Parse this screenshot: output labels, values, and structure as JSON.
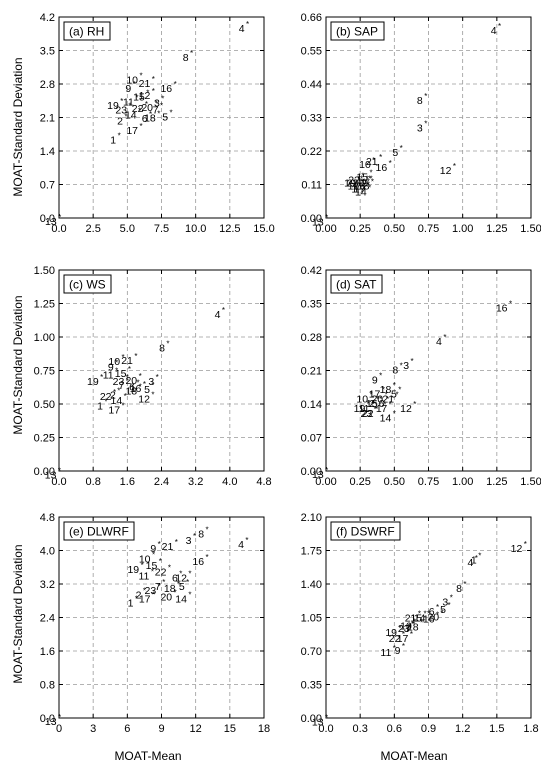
{
  "figure": {
    "xlabel": "MOAT-Mean",
    "ylabel": "MOAT-Standard Deviation"
  },
  "chart_data": [
    {
      "type": "scatter",
      "title": "(a) RH",
      "xlabel": "",
      "ylabel": "MOAT-Standard Deviation",
      "xlim": [
        0,
        15
      ],
      "ylim": [
        0,
        4.2
      ],
      "xticks": [
        "0.0",
        "2.5",
        "5.0",
        "7.5",
        "10.0",
        "12.5",
        "15.0"
      ],
      "yticks": [
        "0.0",
        "0.7",
        "1.4",
        "2.1",
        "2.8",
        "3.5",
        "4.2"
      ],
      "grid": true,
      "points": [
        {
          "label": "1",
          "x": 4.4,
          "y": 1.72
        },
        {
          "label": "2",
          "x": 4.9,
          "y": 2.12
        },
        {
          "label": "3",
          "x": 7.6,
          "y": 2.5
        },
        {
          "label": "4",
          "x": 13.8,
          "y": 4.05
        },
        {
          "label": "5",
          "x": 8.2,
          "y": 2.2
        },
        {
          "label": "6",
          "x": 6.7,
          "y": 2.17
        },
        {
          "label": "7",
          "x": 7.5,
          "y": 2.35
        },
        {
          "label": "8",
          "x": 9.7,
          "y": 3.45
        },
        {
          "label": "9",
          "x": 5.5,
          "y": 2.8
        },
        {
          "label": "10",
          "x": 6.0,
          "y": 2.98
        },
        {
          "label": "11",
          "x": 5.7,
          "y": 2.52
        },
        {
          "label": "12",
          "x": 6.9,
          "y": 2.65
        },
        {
          "label": "13",
          "x": 0.05,
          "y": 0.02
        },
        {
          "label": "14",
          "x": 5.9,
          "y": 2.25
        },
        {
          "label": "15",
          "x": 6.5,
          "y": 2.62
        },
        {
          "label": "16",
          "x": 8.5,
          "y": 2.8
        },
        {
          "label": "17",
          "x": 6.0,
          "y": 1.92
        },
        {
          "label": "18",
          "x": 7.3,
          "y": 2.18
        },
        {
          "label": "19",
          "x": 4.6,
          "y": 2.45
        },
        {
          "label": "20",
          "x": 7.1,
          "y": 2.4
        },
        {
          "label": "21",
          "x": 6.9,
          "y": 2.9
        },
        {
          "label": "22",
          "x": 6.4,
          "y": 2.38
        },
        {
          "label": "23",
          "x": 5.2,
          "y": 2.35
        }
      ]
    },
    {
      "type": "scatter",
      "title": "(b) SAP",
      "xlabel": "",
      "ylabel": "",
      "xlim": [
        0,
        1.5
      ],
      "ylim": [
        0,
        0.66
      ],
      "xticks": [
        "0.00",
        "0.25",
        "0.50",
        "0.75",
        "1.00",
        "1.25",
        "1.50"
      ],
      "yticks": [
        "0.00",
        "0.11",
        "0.22",
        "0.33",
        "0.44",
        "0.55",
        "0.66"
      ],
      "grid": true,
      "points": [
        {
          "label": "1",
          "x": 0.25,
          "y": 0.11
        },
        {
          "label": "2",
          "x": 0.32,
          "y": 0.13
        },
        {
          "label": "3",
          "x": 0.73,
          "y": 0.31
        },
        {
          "label": "4",
          "x": 1.27,
          "y": 0.63
        },
        {
          "label": "5",
          "x": 0.55,
          "y": 0.23
        },
        {
          "label": "6",
          "x": 0.31,
          "y": 0.12
        },
        {
          "label": "7",
          "x": 0.28,
          "y": 0.12
        },
        {
          "label": "8",
          "x": 0.73,
          "y": 0.4
        },
        {
          "label": "9",
          "x": 0.33,
          "y": 0.13
        },
        {
          "label": "10",
          "x": 0.35,
          "y": 0.19
        },
        {
          "label": "11",
          "x": 0.26,
          "y": 0.12
        },
        {
          "label": "12",
          "x": 0.94,
          "y": 0.17
        },
        {
          "label": "13",
          "x": 0.005,
          "y": 0.002
        },
        {
          "label": "14",
          "x": 0.32,
          "y": 0.1
        },
        {
          "label": "15",
          "x": 0.33,
          "y": 0.15
        },
        {
          "label": "16",
          "x": 0.47,
          "y": 0.18
        },
        {
          "label": "17",
          "x": 0.31,
          "y": 0.11
        },
        {
          "label": "18",
          "x": 0.34,
          "y": 0.12
        },
        {
          "label": "19",
          "x": 0.24,
          "y": 0.13
        },
        {
          "label": "20",
          "x": 0.3,
          "y": 0.13
        },
        {
          "label": "21",
          "x": 0.4,
          "y": 0.2
        },
        {
          "label": "22",
          "x": 0.27,
          "y": 0.14
        },
        {
          "label": "23",
          "x": 0.26,
          "y": 0.13
        }
      ]
    },
    {
      "type": "scatter",
      "title": "(c) WS",
      "xlabel": "",
      "ylabel": "MOAT-Standard Deviation",
      "xlim": [
        0,
        4.8
      ],
      "ylim": [
        0,
        1.5
      ],
      "xticks": [
        "0.0",
        "0.8",
        "1.6",
        "2.4",
        "3.2",
        "4.0",
        "4.8"
      ],
      "yticks": [
        "0.00",
        "0.25",
        "0.50",
        "0.75",
        "1.00",
        "1.25",
        "1.50"
      ],
      "grid": true,
      "points": [
        {
          "label": "1",
          "x": 1.1,
          "y": 0.52
        },
        {
          "label": "2",
          "x": 1.4,
          "y": 0.6
        },
        {
          "label": "3",
          "x": 2.3,
          "y": 0.7
        },
        {
          "label": "4",
          "x": 3.85,
          "y": 1.2
        },
        {
          "label": "5",
          "x": 2.2,
          "y": 0.64
        },
        {
          "label": "6",
          "x": 1.85,
          "y": 0.66
        },
        {
          "label": "7",
          "x": 1.6,
          "y": 0.67
        },
        {
          "label": "8",
          "x": 2.55,
          "y": 0.95
        },
        {
          "label": "9",
          "x": 1.35,
          "y": 0.81
        },
        {
          "label": "10",
          "x": 1.5,
          "y": 0.85
        },
        {
          "label": "11",
          "x": 1.35,
          "y": 0.75
        },
        {
          "label": "12",
          "x": 2.2,
          "y": 0.57
        },
        {
          "label": "13",
          "x": 0.01,
          "y": 0.005
        },
        {
          "label": "14",
          "x": 1.55,
          "y": 0.56
        },
        {
          "label": "15",
          "x": 1.65,
          "y": 0.76
        },
        {
          "label": "16",
          "x": 2.0,
          "y": 0.65
        },
        {
          "label": "17",
          "x": 1.5,
          "y": 0.49
        },
        {
          "label": "18",
          "x": 1.9,
          "y": 0.63
        },
        {
          "label": "19",
          "x": 1.0,
          "y": 0.7
        },
        {
          "label": "20",
          "x": 1.9,
          "y": 0.71
        },
        {
          "label": "21",
          "x": 1.8,
          "y": 0.86
        },
        {
          "label": "22",
          "x": 1.3,
          "y": 0.59
        },
        {
          "label": "23",
          "x": 1.6,
          "y": 0.7
        }
      ]
    },
    {
      "type": "scatter",
      "title": "(d) SAT",
      "xlabel": "",
      "ylabel": "",
      "xlim": [
        0,
        1.5
      ],
      "ylim": [
        0,
        0.42
      ],
      "xticks": [
        "0.00",
        "0.25",
        "0.50",
        "0.75",
        "1.00",
        "1.25",
        "1.50"
      ],
      "yticks": [
        "0.00",
        "0.07",
        "0.14",
        "0.21",
        "0.28",
        "0.35",
        "0.42"
      ],
      "grid": true,
      "points": [
        {
          "label": "1",
          "x": 0.43,
          "y": 0.14
        },
        {
          "label": "2",
          "x": 0.38,
          "y": 0.15
        },
        {
          "label": "3",
          "x": 0.63,
          "y": 0.23
        },
        {
          "label": "4",
          "x": 0.87,
          "y": 0.28
        },
        {
          "label": "5",
          "x": 0.54,
          "y": 0.17
        },
        {
          "label": "6",
          "x": 0.45,
          "y": 0.15
        },
        {
          "label": "7",
          "x": 0.47,
          "y": 0.14
        },
        {
          "label": "8",
          "x": 0.55,
          "y": 0.22
        },
        {
          "label": "9",
          "x": 0.4,
          "y": 0.2
        },
        {
          "label": "10",
          "x": 0.33,
          "y": 0.16
        },
        {
          "label": "11",
          "x": 0.34,
          "y": 0.14
        },
        {
          "label": "12",
          "x": 0.65,
          "y": 0.14
        },
        {
          "label": "13",
          "x": 0.005,
          "y": 0.002
        },
        {
          "label": "14",
          "x": 0.5,
          "y": 0.12
        },
        {
          "label": "15",
          "x": 0.4,
          "y": 0.15
        },
        {
          "label": "16",
          "x": 1.35,
          "y": 0.35
        },
        {
          "label": "17",
          "x": 0.42,
          "y": 0.17
        },
        {
          "label": "18",
          "x": 0.5,
          "y": 0.18
        },
        {
          "label": "19",
          "x": 0.31,
          "y": 0.14
        },
        {
          "label": "20",
          "x": 0.44,
          "y": 0.16
        },
        {
          "label": "21",
          "x": 0.52,
          "y": 0.16
        },
        {
          "label": "22",
          "x": 0.37,
          "y": 0.13
        },
        {
          "label": "23",
          "x": 0.36,
          "y": 0.13
        }
      ]
    },
    {
      "type": "scatter",
      "title": "(e) DLWRF",
      "xlabel": "MOAT-Mean",
      "ylabel": "MOAT-Standard Deviation",
      "xlim": [
        0,
        18
      ],
      "ylim": [
        0,
        4.8
      ],
      "xticks": [
        "0",
        "3",
        "6",
        "9",
        "12",
        "15",
        "18"
      ],
      "yticks": [
        "0.0",
        "0.8",
        "1.6",
        "2.4",
        "3.2",
        "4.0",
        "4.8"
      ],
      "grid": true,
      "points": [
        {
          "label": "1",
          "x": 6.8,
          "y": 2.85
        },
        {
          "label": "2",
          "x": 7.5,
          "y": 3.05
        },
        {
          "label": "3",
          "x": 11.9,
          "y": 4.35
        },
        {
          "label": "4",
          "x": 16.5,
          "y": 4.25
        },
        {
          "label": "5",
          "x": 11.3,
          "y": 3.25
        },
        {
          "label": "6",
          "x": 10.7,
          "y": 3.45
        },
        {
          "label": "7",
          "x": 9.2,
          "y": 3.25
        },
        {
          "label": "8",
          "x": 13.0,
          "y": 4.5
        },
        {
          "label": "9",
          "x": 8.8,
          "y": 4.15
        },
        {
          "label": "10",
          "x": 8.3,
          "y": 3.9
        },
        {
          "label": "11",
          "x": 8.2,
          "y": 3.5
        },
        {
          "label": "12",
          "x": 11.5,
          "y": 3.45
        },
        {
          "label": "13",
          "x": 0.05,
          "y": 0.02
        },
        {
          "label": "14",
          "x": 11.5,
          "y": 2.95
        },
        {
          "label": "15",
          "x": 8.9,
          "y": 3.75
        },
        {
          "label": "16",
          "x": 13.0,
          "y": 3.85
        },
        {
          "label": "17",
          "x": 8.3,
          "y": 2.95
        },
        {
          "label": "18",
          "x": 10.5,
          "y": 3.2
        },
        {
          "label": "19",
          "x": 7.3,
          "y": 3.65
        },
        {
          "label": "20",
          "x": 10.2,
          "y": 3.0
        },
        {
          "label": "21",
          "x": 10.3,
          "y": 4.2
        },
        {
          "label": "22",
          "x": 9.7,
          "y": 3.6
        },
        {
          "label": "23",
          "x": 8.8,
          "y": 3.15
        }
      ]
    },
    {
      "type": "scatter",
      "title": "(f) DSWRF",
      "xlabel": "MOAT-Mean",
      "ylabel": "",
      "xlim": [
        0,
        1.8
      ],
      "ylim": [
        0,
        2.1
      ],
      "xticks": [
        "0.0",
        "0.3",
        "0.6",
        "0.9",
        "1.2",
        "1.5",
        "1.8"
      ],
      "yticks": [
        "0.00",
        "0.35",
        "0.70",
        "1.05",
        "1.40",
        "1.75",
        "2.10"
      ],
      "grid": true,
      "points": [
        {
          "label": "1",
          "x": 1.35,
          "y": 1.7
        },
        {
          "label": "3",
          "x": 1.1,
          "y": 1.26
        },
        {
          "label": "4",
          "x": 1.32,
          "y": 1.67
        },
        {
          "label": "5",
          "x": 1.08,
          "y": 1.18
        },
        {
          "label": "6",
          "x": 0.98,
          "y": 1.16
        },
        {
          "label": "7",
          "x": 0.77,
          "y": 0.98
        },
        {
          "label": "8",
          "x": 1.22,
          "y": 1.4
        },
        {
          "label": "9",
          "x": 0.68,
          "y": 0.75
        },
        {
          "label": "10",
          "x": 0.78,
          "y": 1.01
        },
        {
          "label": "11",
          "x": 0.6,
          "y": 0.73
        },
        {
          "label": "12",
          "x": 1.75,
          "y": 1.82
        },
        {
          "label": "13",
          "x": 0.005,
          "y": 0.003
        },
        {
          "label": "14",
          "x": 0.9,
          "y": 1.09
        },
        {
          "label": "15",
          "x": 0.87,
          "y": 1.09
        },
        {
          "label": "16",
          "x": 0.98,
          "y": 1.08
        },
        {
          "label": "17",
          "x": 0.75,
          "y": 0.88
        },
        {
          "label": "18",
          "x": 0.84,
          "y": 1.0
        },
        {
          "label": "19",
          "x": 0.65,
          "y": 0.94
        },
        {
          "label": "20",
          "x": 1.02,
          "y": 1.1
        },
        {
          "label": "21",
          "x": 0.82,
          "y": 1.09
        },
        {
          "label": "22",
          "x": 0.68,
          "y": 0.88
        },
        {
          "label": "23",
          "x": 0.76,
          "y": 0.98
        }
      ]
    }
  ]
}
